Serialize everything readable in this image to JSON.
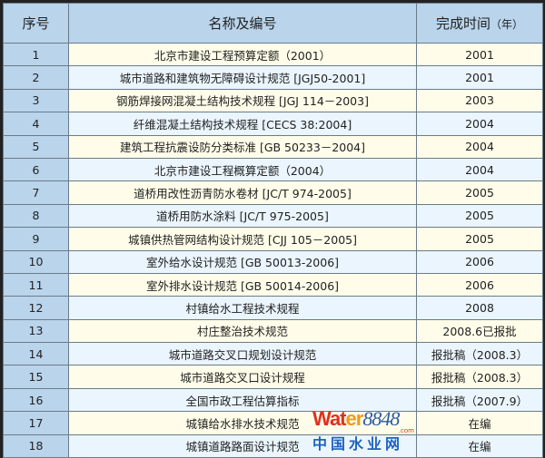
{
  "header": {
    "no": "序号",
    "name": "名称及编号",
    "time": "完成时间",
    "time_unit": "（年）"
  },
  "rows": [
    {
      "no": "1",
      "name": "北京市建设工程预算定额（2001）",
      "time": "2001"
    },
    {
      "no": "2",
      "name": "城市道路和建筑物无障碍设计规范 [JGJ50-2001]",
      "time": "2001"
    },
    {
      "no": "3",
      "name": "钢筋焊接网混凝土结构技术规程 [JGJ 114－2003]",
      "time": "2003"
    },
    {
      "no": "4",
      "name": "纤维混凝土结构技术规程 [CECS 38:2004]",
      "time": "2004"
    },
    {
      "no": "5",
      "name": "建筑工程抗震设防分类标准 [GB 50233－2004]",
      "time": "2004"
    },
    {
      "no": "6",
      "name": "北京市建设工程概算定额（2004）",
      "time": "2004"
    },
    {
      "no": "7",
      "name": "道桥用改性沥青防水卷材 [JC/T 974-2005]",
      "time": "2005"
    },
    {
      "no": "8",
      "name": "道桥用防水涂料 [JC/T 975-2005]",
      "time": "2005"
    },
    {
      "no": "9",
      "name": "城镇供热管网结构设计规范 [CJJ 105－2005]",
      "time": "2005"
    },
    {
      "no": "10",
      "name": "室外给水设计规范 [GB 50013-2006]",
      "time": "2006"
    },
    {
      "no": "11",
      "name": "室外排水设计规范 [GB 50014-2006]",
      "time": "2006"
    },
    {
      "no": "12",
      "name": "村镇给水工程技术规程",
      "time": "2008"
    },
    {
      "no": "13",
      "name": "村庄整治技术规范",
      "time": "2008.6已报批"
    },
    {
      "no": "14",
      "name": "城市道路交叉口规划设计规范",
      "time": "报批稿（2008.3）"
    },
    {
      "no": "15",
      "name": "城市道路交叉口设计规程",
      "time": "报批稿（2008.3）"
    },
    {
      "no": "16",
      "name": "全国市政工程估算指标",
      "time": "报批稿（2007.9）"
    },
    {
      "no": "17",
      "name": "城镇给水排水技术规范",
      "time": "在编"
    },
    {
      "no": "18",
      "name": "城镇道路路面设计规范",
      "time": "在编"
    }
  ],
  "watermark": {
    "brand_a": "Wat",
    "brand_b": "er",
    "brand_num": "8848",
    "brand_com": ".com",
    "brand_cn": "中国水业网"
  },
  "colors": {
    "header": "#b9d4eb",
    "odd_row": "#fffde9",
    "even_row": "#eaf5fd",
    "border": "#222222"
  }
}
